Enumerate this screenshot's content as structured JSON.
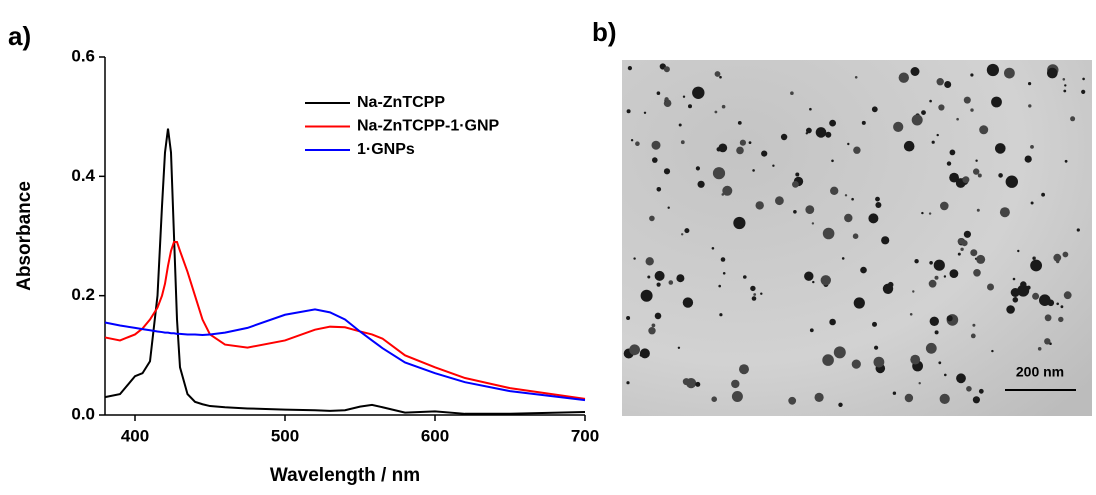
{
  "panel_labels": {
    "a": "a)",
    "b": "b)"
  },
  "chart_data": {
    "type": "line",
    "x_label": "Wavelength / nm",
    "y_label": "Absorbance",
    "x": [
      380,
      390,
      400,
      405,
      410,
      415,
      418,
      420,
      422,
      424,
      426,
      428,
      430,
      435,
      440,
      445,
      450,
      460,
      475,
      500,
      520,
      530,
      540,
      550,
      558,
      565,
      580,
      600,
      620,
      650,
      700
    ],
    "series": [
      {
        "name": "Na-ZnTCPP",
        "color": "#000000",
        "values": [
          0.03,
          0.035,
          0.065,
          0.07,
          0.09,
          0.2,
          0.35,
          0.44,
          0.48,
          0.44,
          0.3,
          0.16,
          0.08,
          0.035,
          0.022,
          0.018,
          0.015,
          0.013,
          0.011,
          0.009,
          0.008,
          0.007,
          0.008,
          0.014,
          0.017,
          0.013,
          0.004,
          0.006,
          0.002,
          0.002,
          0.005
        ]
      },
      {
        "name": "Na-ZnTCPP-1·GNP",
        "color": "#ff0000",
        "values": [
          0.13,
          0.125,
          0.135,
          0.145,
          0.16,
          0.18,
          0.2,
          0.22,
          0.25,
          0.275,
          0.29,
          0.29,
          0.275,
          0.24,
          0.2,
          0.16,
          0.135,
          0.118,
          0.113,
          0.125,
          0.143,
          0.148,
          0.147,
          0.14,
          0.135,
          0.128,
          0.1,
          0.08,
          0.062,
          0.045,
          0.027
        ]
      },
      {
        "name": "1·GNPs",
        "color": "#0000ff",
        "values": [
          0.155,
          0.15,
          0.146,
          0.144,
          0.142,
          0.14,
          0.139,
          0.138,
          0.138,
          0.137,
          0.137,
          0.136,
          0.136,
          0.135,
          0.135,
          0.134,
          0.135,
          0.138,
          0.146,
          0.168,
          0.177,
          0.172,
          0.16,
          0.14,
          0.125,
          0.112,
          0.088,
          0.07,
          0.055,
          0.04,
          0.025
        ]
      }
    ],
    "xlim": [
      380,
      700
    ],
    "xticks": [
      400,
      500,
      600,
      700
    ],
    "ylim": [
      0,
      0.6
    ],
    "yticks": [
      {
        "value": 0,
        "label": "0.0"
      },
      0.2,
      0.4,
      0.6
    ],
    "grid": false,
    "legend": "upper right"
  },
  "image": {
    "scale_bar_label": "200 nm"
  }
}
